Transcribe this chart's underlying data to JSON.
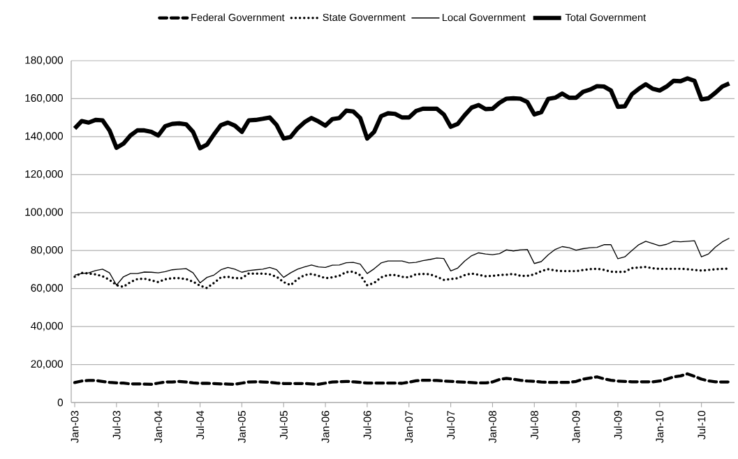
{
  "chart_data": {
    "type": "line",
    "categories": [
      "Jan-03",
      null,
      null,
      null,
      null,
      null,
      "Jul-03",
      null,
      null,
      null,
      null,
      null,
      "Jan-04",
      null,
      null,
      null,
      null,
      null,
      "Jul-04",
      null,
      null,
      null,
      null,
      null,
      "Jan-05",
      null,
      null,
      null,
      null,
      null,
      "Jul-05",
      null,
      null,
      null,
      null,
      null,
      "Jan-06",
      null,
      null,
      null,
      null,
      null,
      "Jul-06",
      null,
      null,
      null,
      null,
      null,
      "Jan-07",
      null,
      null,
      null,
      null,
      null,
      "Jul-07",
      null,
      null,
      null,
      null,
      null,
      "Jan-08",
      null,
      null,
      null,
      null,
      null,
      "Jul-08",
      null,
      null,
      null,
      null,
      null,
      "Jan-09",
      null,
      null,
      null,
      null,
      null,
      "Jul-09",
      null,
      null,
      null,
      null,
      null,
      "Jan-10",
      null,
      null,
      null,
      null,
      null,
      "Jul-10",
      null,
      null,
      null,
      null
    ],
    "series": [
      {
        "name": "Federal Government",
        "color": "#000000",
        "line_style": "dashed",
        "values": [
          10500,
          11300,
          11600,
          11600,
          11100,
          10600,
          10300,
          10200,
          9800,
          9800,
          9700,
          9600,
          10200,
          10800,
          10800,
          11100,
          10800,
          10300,
          10100,
          10100,
          10000,
          9800,
          9700,
          9600,
          10200,
          10800,
          10900,
          10800,
          10600,
          10200,
          10000,
          10000,
          10000,
          10000,
          9800,
          9600,
          10200,
          10800,
          10900,
          11100,
          10900,
          10600,
          10200,
          10200,
          10200,
          10200,
          10200,
          10100,
          10700,
          11400,
          11700,
          11700,
          11600,
          11300,
          11100,
          10900,
          10700,
          10500,
          10300,
          10300,
          10800,
          12100,
          12700,
          12300,
          11700,
          11300,
          11100,
          10800,
          10600,
          10600,
          10600,
          10600,
          11100,
          12300,
          12900,
          13500,
          12500,
          11700,
          11300,
          11100,
          10900,
          10900,
          10900,
          10900,
          11300,
          12300,
          13500,
          14000,
          15100,
          13800,
          12300,
          11400,
          10900,
          10800,
          10800
        ]
      },
      {
        "name": "State Government",
        "color": "#000000",
        "line_style": "dotted",
        "values": [
          66200,
          68300,
          67900,
          67500,
          66500,
          64600,
          61800,
          60900,
          63400,
          65000,
          65200,
          64300,
          63400,
          64900,
          65500,
          65500,
          65000,
          63600,
          61500,
          60300,
          63000,
          65900,
          66200,
          65500,
          65500,
          67900,
          67900,
          67900,
          67500,
          66200,
          63400,
          61800,
          65000,
          67100,
          67700,
          66700,
          65500,
          65900,
          66700,
          68700,
          68900,
          67100,
          61800,
          63000,
          65900,
          67100,
          67100,
          66200,
          65900,
          67500,
          67700,
          67500,
          66200,
          64600,
          65000,
          65500,
          67100,
          67900,
          67300,
          66500,
          66700,
          67100,
          67300,
          67700,
          66700,
          66700,
          67500,
          69200,
          70200,
          69500,
          69200,
          69200,
          69200,
          69800,
          70200,
          70400,
          69900,
          68900,
          68700,
          68900,
          70800,
          71100,
          71400,
          70700,
          70400,
          70400,
          70400,
          70400,
          70200,
          69800,
          69500,
          69800,
          70200,
          70400,
          70500
        ]
      },
      {
        "name": "Local Government",
        "color": "#000000",
        "line_style": "solid",
        "values": [
          67100,
          67900,
          68300,
          69500,
          70200,
          68300,
          61800,
          66200,
          67900,
          67900,
          68700,
          68600,
          68300,
          68900,
          69900,
          70200,
          70500,
          68300,
          63000,
          65900,
          67100,
          69900,
          71100,
          70200,
          68600,
          69500,
          69900,
          70200,
          71100,
          69900,
          65900,
          68300,
          70200,
          71400,
          72400,
          71400,
          71100,
          72300,
          72400,
          73600,
          73800,
          72900,
          67900,
          70400,
          73500,
          74500,
          74500,
          74500,
          73500,
          73800,
          74700,
          75300,
          76100,
          75800,
          69300,
          70800,
          74500,
          77300,
          78800,
          78200,
          77800,
          78400,
          80400,
          79800,
          80400,
          80600,
          73200,
          74200,
          77800,
          80600,
          82100,
          81500,
          80200,
          81000,
          81500,
          81700,
          83100,
          83100,
          75700,
          76700,
          80000,
          83100,
          84900,
          83700,
          82500,
          83300,
          84900,
          84600,
          84900,
          85200,
          76700,
          78200,
          81800,
          84600,
          86500
        ]
      },
      {
        "name": "Total Government",
        "color": "#000000",
        "line_style": "solid",
        "values": [
          144300,
          148200,
          147400,
          148800,
          148600,
          143300,
          134100,
          136300,
          140600,
          143300,
          143300,
          142500,
          140600,
          145500,
          146700,
          147000,
          146500,
          142500,
          133900,
          135800,
          141200,
          146100,
          147400,
          145800,
          142500,
          148600,
          148800,
          149400,
          150100,
          146100,
          139000,
          139800,
          144300,
          147600,
          149800,
          148000,
          145800,
          149200,
          149800,
          153700,
          153300,
          149800,
          139000,
          142500,
          150800,
          152300,
          152000,
          150100,
          150100,
          153500,
          154700,
          154700,
          154700,
          151700,
          145200,
          146700,
          151300,
          155300,
          156600,
          154500,
          154700,
          157800,
          160000,
          160200,
          160000,
          158200,
          151700,
          152900,
          159900,
          160500,
          162700,
          160500,
          160500,
          163600,
          164800,
          166600,
          166400,
          164300,
          155700,
          156000,
          162300,
          165200,
          167600,
          165200,
          164300,
          166400,
          169400,
          169200,
          170700,
          169400,
          159600,
          160200,
          163100,
          166400,
          168000
        ]
      }
    ],
    "ylim": [
      0,
      180000
    ],
    "yticks": [
      {
        "value": 0,
        "label": "0"
      },
      {
        "value": 20000,
        "label": "20,000"
      },
      {
        "value": 40000,
        "label": "40,000"
      },
      {
        "value": 60000,
        "label": "60,000"
      },
      {
        "value": 80000,
        "label": "80,000"
      },
      {
        "value": 100000,
        "label": "100,000"
      },
      {
        "value": 120000,
        "label": "120,000"
      },
      {
        "value": 140000,
        "label": "140,000"
      },
      {
        "value": 160000,
        "label": "160,000"
      },
      {
        "value": 180000,
        "label": "180,000"
      }
    ],
    "grid": "y",
    "legend": "top"
  }
}
